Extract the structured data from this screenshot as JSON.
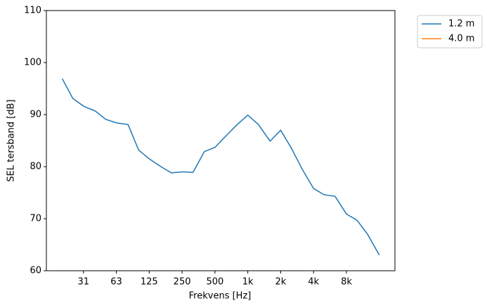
{
  "chart_data": {
    "type": "line",
    "xlabel": "Frekvens [Hz]",
    "ylabel": "SEL tersband [dB]",
    "xscale": "log",
    "x": [
      20,
      25,
      31.5,
      40,
      50,
      63,
      80,
      100,
      125,
      160,
      200,
      250,
      315,
      400,
      500,
      630,
      800,
      1000,
      1250,
      1600,
      2000,
      2500,
      3150,
      4000,
      5000,
      6300,
      8000,
      10000,
      12500,
      16000
    ],
    "series": [
      {
        "name": "1.2 m",
        "color": "#1f77b4",
        "values": [
          96.9,
          93.1,
          91.6,
          90.7,
          89.1,
          88.4,
          88.1,
          83.2,
          81.5,
          80.0,
          78.8,
          79.0,
          78.9,
          82.9,
          83.7,
          85.9,
          88.1,
          89.9,
          88.1,
          84.9,
          87.0,
          83.6,
          79.5,
          75.8,
          74.6,
          74.3,
          70.9,
          69.7,
          67.0,
          63.0
        ]
      },
      {
        "name": "4.0 m",
        "color": "#ff7f0e",
        "values": [
          null,
          null,
          null,
          null,
          null,
          null,
          null,
          null,
          null,
          null,
          null,
          null,
          null,
          null,
          null,
          null,
          null,
          null,
          null,
          null,
          null,
          null,
          null,
          null,
          null,
          null,
          null,
          null,
          null,
          null
        ]
      }
    ],
    "xlim": [
      14.3,
      22250
    ],
    "xticks": [
      {
        "value": 31.25,
        "label": "31"
      },
      {
        "value": 62.5,
        "label": "63"
      },
      125,
      250,
      500,
      {
        "value": 1000,
        "label": "1k"
      },
      {
        "value": 2000,
        "label": "2k"
      },
      {
        "value": 4000,
        "label": "4k"
      },
      {
        "value": 8000,
        "label": "8k"
      }
    ],
    "ylim": [
      60,
      110
    ],
    "yticks": [
      60,
      70,
      80,
      90,
      100,
      110
    ],
    "grid": false,
    "legend": "outside upper right"
  }
}
